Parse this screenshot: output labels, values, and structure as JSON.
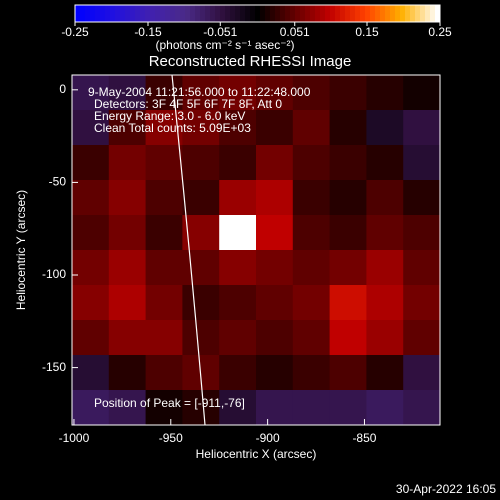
{
  "chart_data": {
    "type": "heatmap",
    "title": "Reconstructed RHESSI Image",
    "xlabel": "Heliocentric X (arcsec)",
    "ylabel": "Heliocentric Y (arcsec)",
    "xlim": [
      -1001,
      -811
    ],
    "ylim": [
      -181,
      8
    ],
    "xticks": [
      -1000,
      -950,
      -900,
      -850
    ],
    "yticks": [
      0,
      -50,
      -100,
      -150
    ],
    "colorbar": {
      "label": "(photons cm⁻² s⁻¹ asec⁻²)",
      "lim": [
        -0.25,
        0.25
      ],
      "ticks": [
        -0.25,
        -0.15,
        -0.051,
        0.051,
        0.15,
        0.25
      ]
    },
    "colormap": [
      "#0000ff",
      "#2010e0",
      "#4020b0",
      "#4a2a88",
      "#301040",
      "#000000",
      "#600000",
      "#c00000",
      "#ff4000",
      "#ffb000",
      "#ffffff"
    ],
    "annotations": [
      "9-May-2004 11:21:56.000 to 11:22:48.000",
      "Detectors: 3F 4F 5F 6F 7F 8F, Att 0",
      "Energy Range: 3.0 - 6.0 keV",
      "Clean    Total counts: 5.09E+03"
    ],
    "peak_label": "Position of Peak = [-911,-76]",
    "footer": "30-Apr-2022 16:05",
    "z": [
      [
        -0.06,
        -0.05,
        0.03,
        0.05,
        0.06,
        0.05,
        0.04,
        0.03,
        0.02,
        0.01
      ],
      [
        -0.05,
        0.04,
        0.07,
        0.06,
        0.04,
        0.03,
        0.05,
        0.02,
        -0.03,
        -0.05
      ],
      [
        0.03,
        0.06,
        0.05,
        0.04,
        0.03,
        0.06,
        0.04,
        0.03,
        0.02,
        -0.04
      ],
      [
        0.05,
        0.07,
        0.04,
        0.03,
        0.08,
        0.09,
        0.03,
        0.02,
        0.04,
        0.02
      ],
      [
        0.04,
        0.06,
        0.03,
        0.07,
        0.25,
        0.1,
        0.04,
        0.03,
        0.05,
        0.04
      ],
      [
        0.06,
        0.08,
        0.05,
        0.05,
        0.07,
        0.06,
        0.05,
        0.06,
        0.08,
        0.05
      ],
      [
        0.07,
        0.09,
        0.06,
        0.03,
        0.04,
        0.05,
        0.06,
        0.11,
        0.09,
        0.06
      ],
      [
        0.05,
        0.07,
        0.07,
        0.04,
        0.05,
        0.04,
        0.05,
        0.1,
        0.08,
        0.05
      ],
      [
        -0.04,
        0.02,
        0.04,
        0.05,
        0.03,
        0.02,
        0.03,
        0.04,
        0.02,
        -0.05
      ],
      [
        -0.07,
        -0.06,
        0.01,
        0.02,
        -0.04,
        -0.06,
        -0.06,
        -0.06,
        -0.07,
        -0.06
      ]
    ]
  }
}
